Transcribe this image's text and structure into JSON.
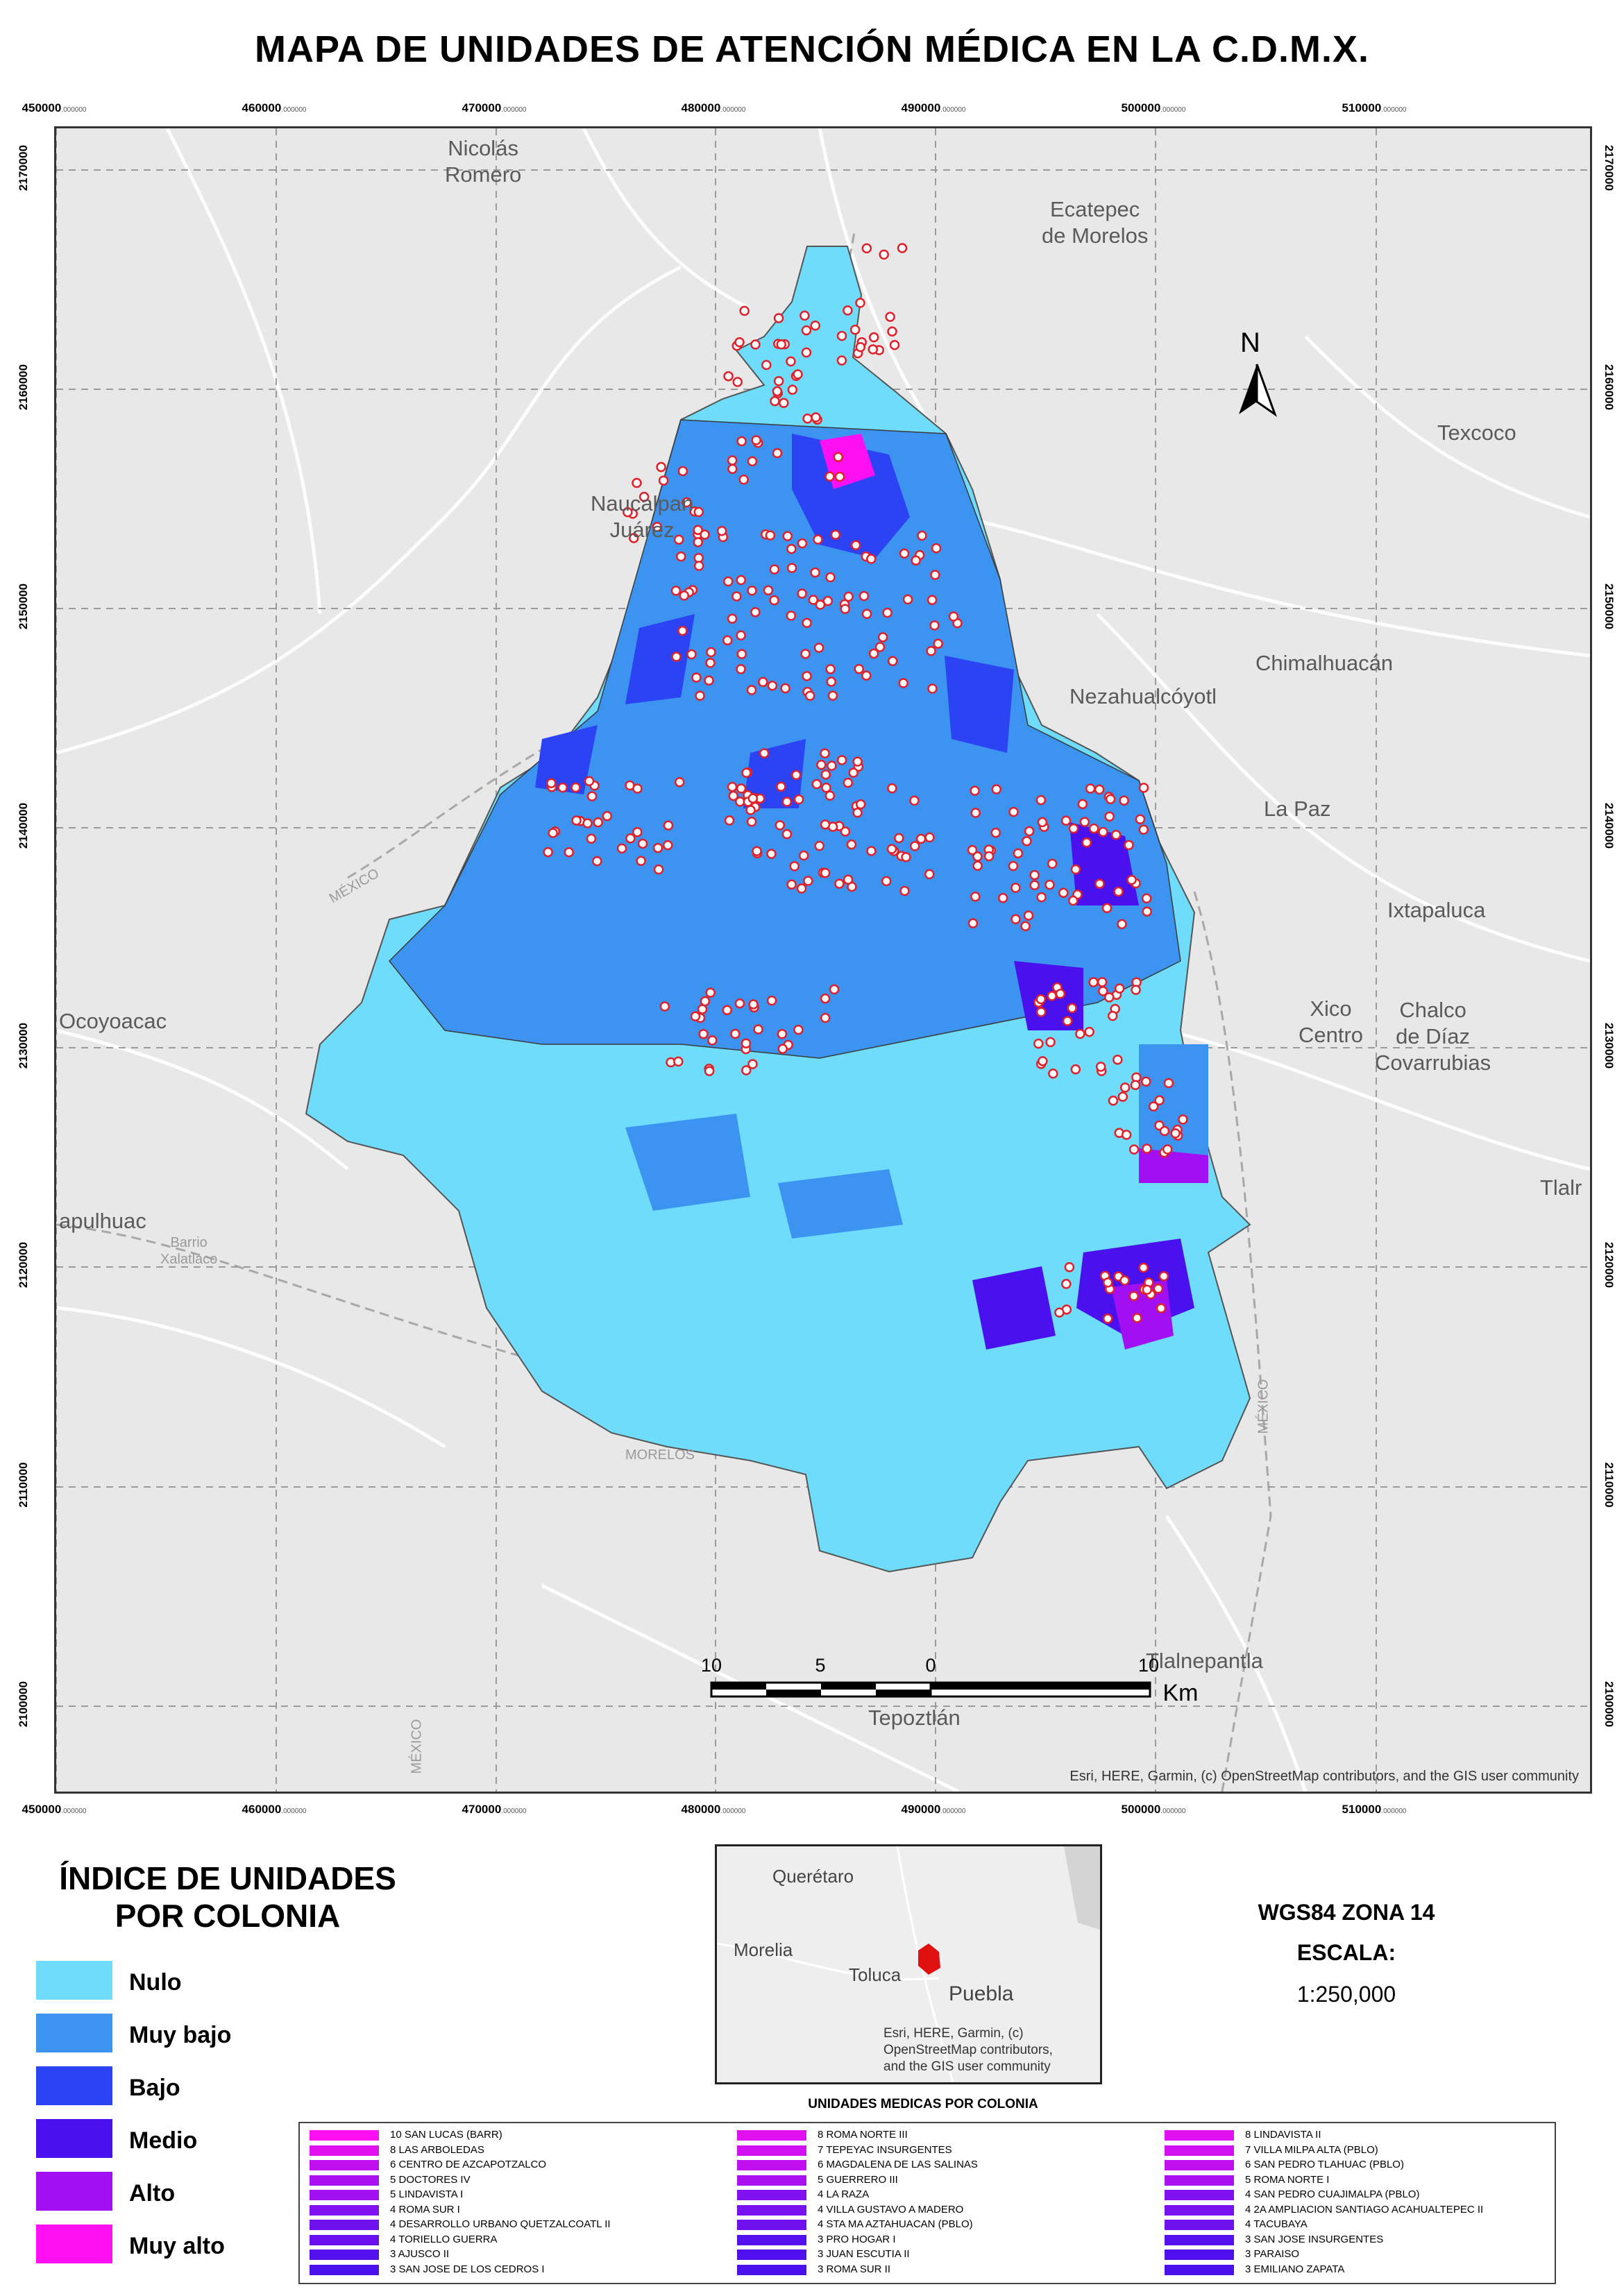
{
  "title": "MAPA DE UNIDADES DE ATENCIÓN MÉDICA EN LA C.D.M.X.",
  "grid": {
    "x_ticks": [
      "450000",
      "460000",
      "470000",
      "480000",
      "490000",
      "500000",
      "510000"
    ],
    "y_ticks": [
      "2170000",
      "2160000",
      "2150000",
      "2140000",
      "2130000",
      "2120000",
      "2110000",
      "2100000"
    ],
    "tick_suffix": ".000000"
  },
  "places": [
    {
      "name": "Nicolás\nRomero",
      "key": "nicolas"
    },
    {
      "name": "Ecatepec\nde Morelos",
      "key": "ecatepec"
    },
    {
      "name": "Naucalpan\nJuárez",
      "key": "naucalpan"
    },
    {
      "name": "Texcoco",
      "key": "texcoco"
    },
    {
      "name": "Chimalhuacán",
      "key": "chimal"
    },
    {
      "name": "Nezahualcóyotl",
      "key": "neza"
    },
    {
      "name": "La Paz",
      "key": "lapaz"
    },
    {
      "name": "Ixtapaluca",
      "key": "ixta"
    },
    {
      "name": "Xico\nCentro",
      "key": "xico"
    },
    {
      "name": "Chalco\nde Díaz\nCovarrubias",
      "key": "chalco"
    },
    {
      "name": "Ocoyoacac",
      "key": "ocoyo"
    },
    {
      "name": "Tlalr",
      "key": "tlalr"
    },
    {
      "name": "Tlalnepantla",
      "key": "tlalne"
    },
    {
      "name": "Tepoztlán",
      "key": "tepoz"
    },
    {
      "name": "apulhuac",
      "key": "apul"
    },
    {
      "name": "Barrio\nXalatlaco",
      "key": "barrio"
    },
    {
      "name": "MÉXICO",
      "key": "mex1"
    },
    {
      "name": "MORELOS",
      "key": "morelos"
    },
    {
      "name": "MÉXICO",
      "key": "mex2"
    },
    {
      "name": "MÉXICO",
      "key": "mex3"
    }
  ],
  "north": "N",
  "scale_bar": {
    "labels": [
      "10",
      "5",
      "0",
      "10"
    ],
    "unit": "Km"
  },
  "map_credit": "Esri, HERE, Garmin, (c) OpenStreetMap contributors, and the GIS user community",
  "legend": {
    "title": "ÍNDICE DE UNIDADES\nPOR COLONIA",
    "items": [
      {
        "label": "Nulo",
        "color": "#6fdcfb"
      },
      {
        "label": "Muy bajo",
        "color": "#3c93f0"
      },
      {
        "label": "Bajo",
        "color": "#2b43f2"
      },
      {
        "label": "Medio",
        "color": "#4a10ee"
      },
      {
        "label": "Alto",
        "color": "#a10ff2"
      },
      {
        "label": "Muy alto",
        "color": "#ff10f2"
      }
    ]
  },
  "inset": {
    "labels": [
      "Querétaro",
      "Morelia",
      "Toluca",
      "Puebla"
    ],
    "credit": "Esri, HERE, Garmin, (c)\nOpenStreetMap contributors,\nand the GIS user community"
  },
  "projection": {
    "line1": "WGS84 ZONA 14",
    "line2": "ESCALA:",
    "line3": "1:250,000"
  },
  "table": {
    "title": "UNIDADES MEDICAS POR COLONIA",
    "columns": [
      [
        {
          "label": "10 SAN LUCAS (BARR)",
          "color": "#ff10f2"
        },
        {
          "label": "8 LAS ARBOLEDAS",
          "color": "#e010f0"
        },
        {
          "label": "6 CENTRO DE AZCAPOTZALCO",
          "color": "#c010f0"
        },
        {
          "label": "5 DOCTORES IV",
          "color": "#a810f0"
        },
        {
          "label": "5 LINDAVISTA I",
          "color": "#a010f0"
        },
        {
          "label": "4 ROMA SUR I",
          "color": "#8010ef"
        },
        {
          "label": "4 DESARROLLO URBANO QUETZALCOATL  II",
          "color": "#7010ee"
        },
        {
          "label": "4 TORIELLO GUERRA",
          "color": "#6a10ee"
        },
        {
          "label": "3 AJUSCO II",
          "color": "#5510ee"
        },
        {
          "label": "3 SAN JOSE DE LOS CEDROS I",
          "color": "#4a10ee"
        }
      ],
      [
        {
          "label": "8 ROMA NORTE III",
          "color": "#e010f0"
        },
        {
          "label": "7 TEPEYAC INSURGENTES",
          "color": "#d010f0"
        },
        {
          "label": "6 MAGDALENA DE LAS SALINAS",
          "color": "#c010f0"
        },
        {
          "label": "5 GUERRERO III",
          "color": "#a810f0"
        },
        {
          "label": "4 LA RAZA",
          "color": "#8010ef"
        },
        {
          "label": "4 VILLA GUSTAVO A MADERO",
          "color": "#7810ef"
        },
        {
          "label": "4 STA MA AZTAHUACAN (PBLO)",
          "color": "#7010ee"
        },
        {
          "label": "3 PRO HOGAR I",
          "color": "#5510ee"
        },
        {
          "label": "3 JUAN ESCUTIA II",
          "color": "#5010ee"
        },
        {
          "label": "3 ROMA SUR II",
          "color": "#4a10ee"
        }
      ],
      [
        {
          "label": "8 LINDAVISTA II",
          "color": "#e010f0"
        },
        {
          "label": "7 VILLA MILPA ALTA (PBLO)",
          "color": "#d010f0"
        },
        {
          "label": "6 SAN PEDRO TLAHUAC (PBLO)",
          "color": "#c010f0"
        },
        {
          "label": "5 ROMA NORTE I",
          "color": "#a810f0"
        },
        {
          "label": "4 SAN PEDRO CUAJIMALPA (PBLO)",
          "color": "#8010ef"
        },
        {
          "label": "4 2A AMPLIACION SANTIAGO ACAHUALTEPEC II",
          "color": "#7810ef"
        },
        {
          "label": "4 TACUBAYA",
          "color": "#7010ee"
        },
        {
          "label": "3 SAN JOSE INSURGENTES",
          "color": "#5510ee"
        },
        {
          "label": "3 PARAISO",
          "color": "#5010ee"
        },
        {
          "label": "3 EMILIANO ZAPATA",
          "color": "#4a10ee"
        }
      ]
    ]
  }
}
